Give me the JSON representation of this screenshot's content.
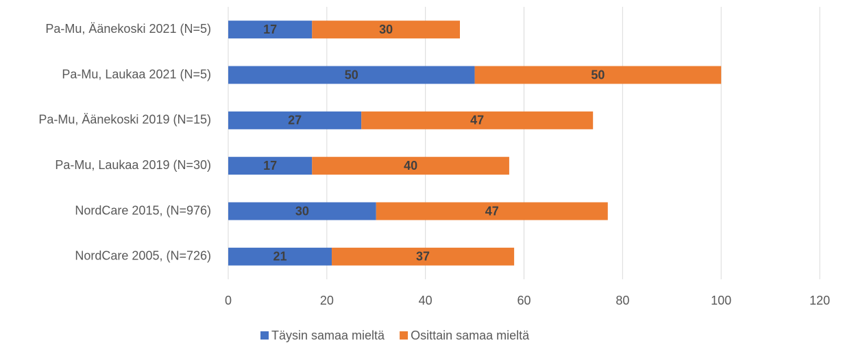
{
  "chart_data": {
    "type": "bar",
    "orientation": "horizontal",
    "stacked": true,
    "categories": [
      "Pa-Mu, Äänekoski 2021 (N=5)",
      "Pa-Mu, Laukaa 2021 (N=5)",
      "Pa-Mu, Äänekoski 2019 (N=15)",
      "Pa-Mu, Laukaa 2019 (N=30)",
      "NordCare 2015, (N=976)",
      "NordCare 2005, (N=726)"
    ],
    "series": [
      {
        "name": "Täysin samaa mieltä",
        "color": "#4472c4",
        "values": [
          17,
          50,
          27,
          17,
          30,
          21
        ]
      },
      {
        "name": "Osittain samaa mieltä",
        "color": "#ed7d31",
        "values": [
          30,
          50,
          47,
          40,
          47,
          37
        ]
      }
    ],
    "xlim": [
      0,
      120
    ],
    "xticks": [
      0,
      20,
      40,
      60,
      80,
      100,
      120
    ],
    "grid": true,
    "legend": "bottom"
  }
}
